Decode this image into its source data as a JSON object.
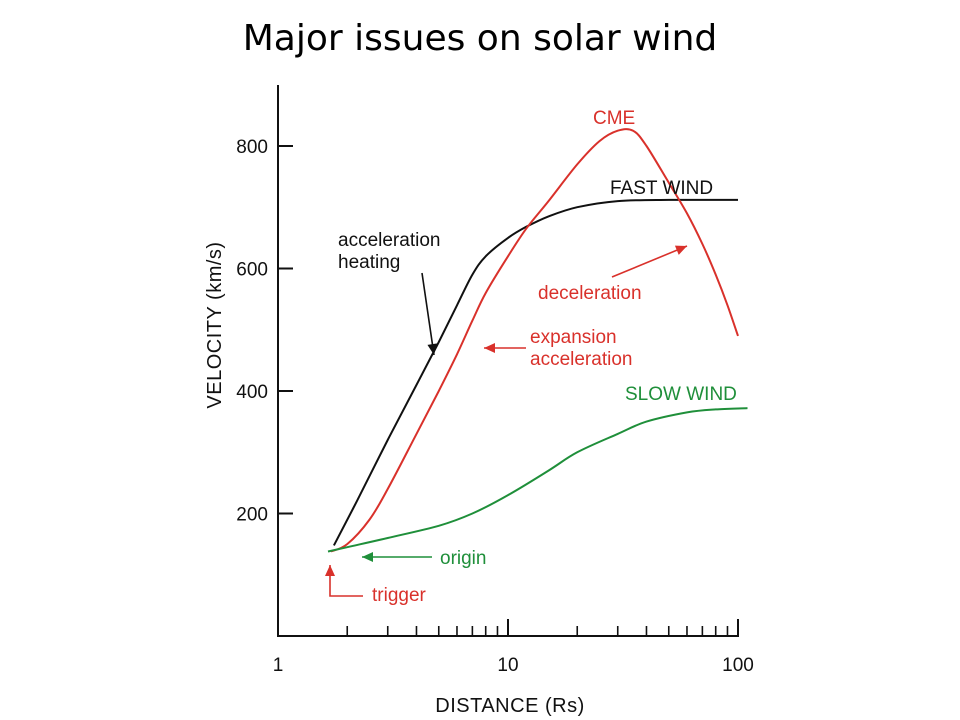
{
  "title": "Major issues on solar wind",
  "chart_data": {
    "type": "line",
    "xlabel": "DISTANCE (Rs)",
    "ylabel": "VELOCITY (km/s)",
    "xscale": "log",
    "xlim": [
      1,
      100
    ],
    "ylim": [
      0,
      900
    ],
    "x_tick_labels": [
      "1",
      "10",
      "100"
    ],
    "y_tick_labels": [
      "200",
      "400",
      "600",
      "800"
    ],
    "grid": false,
    "colors": {
      "fast": "#111111",
      "cme": "#d9312b",
      "slow": "#1f8f3a"
    },
    "series": [
      {
        "name": "FAST WIND",
        "color": "#111111",
        "points": [
          [
            1.75,
            148
          ],
          [
            2.2,
            220
          ],
          [
            3,
            320
          ],
          [
            4,
            410
          ],
          [
            5,
            480
          ],
          [
            6,
            540
          ],
          [
            7,
            590
          ],
          [
            8,
            620
          ],
          [
            10,
            650
          ],
          [
            12,
            668
          ],
          [
            15,
            685
          ],
          [
            20,
            700
          ],
          [
            30,
            710
          ],
          [
            50,
            712
          ],
          [
            100,
            712
          ]
        ]
      },
      {
        "name": "CME",
        "color": "#d9312b",
        "points": [
          [
            1.7,
            138
          ],
          [
            2.0,
            150
          ],
          [
            2.5,
            190
          ],
          [
            3,
            240
          ],
          [
            4,
            330
          ],
          [
            5,
            400
          ],
          [
            6,
            460
          ],
          [
            7,
            515
          ],
          [
            8,
            560
          ],
          [
            10,
            620
          ],
          [
            12,
            665
          ],
          [
            15,
            710
          ],
          [
            20,
            770
          ],
          [
            25,
            808
          ],
          [
            30,
            825
          ],
          [
            35,
            825
          ],
          [
            40,
            800
          ],
          [
            50,
            740
          ],
          [
            60,
            690
          ],
          [
            70,
            640
          ],
          [
            80,
            590
          ],
          [
            90,
            540
          ],
          [
            100,
            490
          ]
        ]
      },
      {
        "name": "SLOW WIND",
        "color": "#1f8f3a",
        "points": [
          [
            1.65,
            138
          ],
          [
            2,
            145
          ],
          [
            3,
            160
          ],
          [
            5,
            180
          ],
          [
            7,
            200
          ],
          [
            10,
            230
          ],
          [
            15,
            270
          ],
          [
            20,
            300
          ],
          [
            30,
            330
          ],
          [
            40,
            350
          ],
          [
            60,
            365
          ],
          [
            80,
            370
          ],
          [
            110,
            372
          ]
        ]
      }
    ],
    "annotations": [
      {
        "id": "accel-heating",
        "lines": [
          "acceleration",
          "heating"
        ],
        "color": "#111111"
      },
      {
        "id": "expansion",
        "lines": [
          "expansion",
          "acceleration"
        ],
        "color": "#d9312b"
      },
      {
        "id": "deceleration",
        "lines": [
          "deceleration"
        ],
        "color": "#d9312b"
      },
      {
        "id": "origin",
        "lines": [
          "origin"
        ],
        "color": "#1f8f3a"
      },
      {
        "id": "trigger",
        "lines": [
          "trigger"
        ],
        "color": "#d9312b"
      }
    ]
  }
}
